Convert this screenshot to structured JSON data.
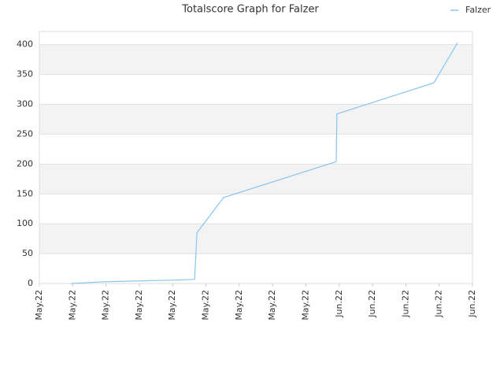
{
  "chart_data": {
    "type": "line",
    "title": "Totalscore Graph for Falzer",
    "series": [
      {
        "name": "Falzer",
        "color": "#88c4f0",
        "x": [
          0.95,
          2.0,
          2.72,
          3.55,
          4.26,
          4.66,
          4.73,
          5.53,
          8.91,
          8.93,
          11.84,
          12.55
        ],
        "values": [
          0,
          3,
          4,
          5,
          6,
          7,
          85,
          144,
          204,
          284,
          336,
          403
        ]
      }
    ],
    "xlim": [
      0,
      13
    ],
    "xticks": [
      {
        "value": 0,
        "label": "May.22"
      },
      {
        "value": 1,
        "label": "May.22"
      },
      {
        "value": 2,
        "label": "May.22"
      },
      {
        "value": 3,
        "label": "May.22"
      },
      {
        "value": 4,
        "label": "May.22"
      },
      {
        "value": 5,
        "label": "May.22"
      },
      {
        "value": 6,
        "label": "May.22"
      },
      {
        "value": 7,
        "label": "May.22"
      },
      {
        "value": 8,
        "label": "May.22"
      },
      {
        "value": 9,
        "label": "Jun.22"
      },
      {
        "value": 10,
        "label": "Jun.22"
      },
      {
        "value": 11,
        "label": "Jun.22"
      },
      {
        "value": 12,
        "label": "Jun.22"
      },
      {
        "value": 13,
        "label": "Jun.22"
      }
    ],
    "ylim": [
      0,
      422
    ],
    "yticks": [
      0,
      50,
      100,
      150,
      200,
      250,
      300,
      350,
      400
    ],
    "grid": true,
    "legend": "top-right"
  }
}
